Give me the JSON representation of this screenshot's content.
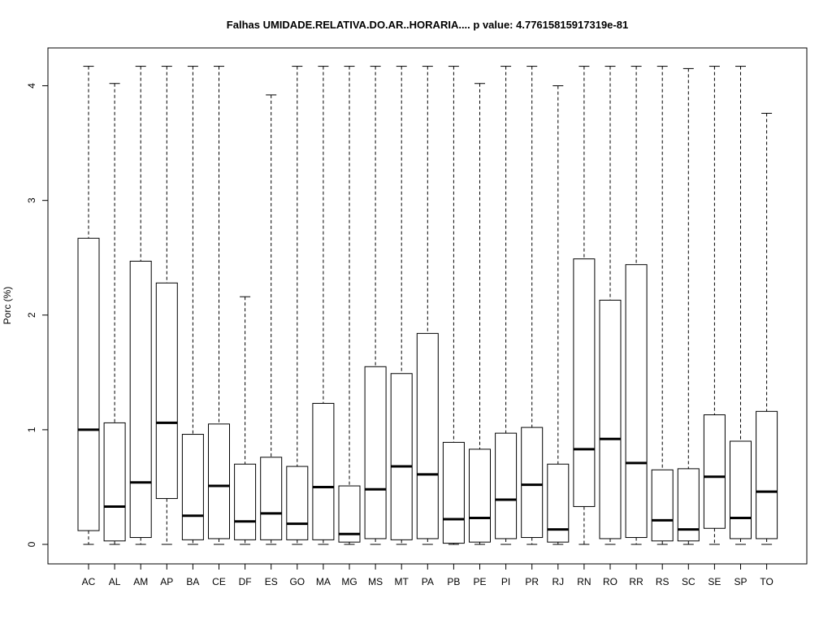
{
  "chart_data": {
    "type": "boxplot",
    "title": "Falhas UMIDADE.RELATIVA.DO.AR..HORARIA.... p value: 4.77615815917319e-81",
    "xlabel": "",
    "ylabel": "Porc (%)",
    "ylim": [
      -0.17,
      4.33
    ],
    "yticks": [
      0,
      1,
      2,
      3,
      4
    ],
    "grid": false,
    "categories": [
      "AC",
      "AL",
      "AM",
      "AP",
      "BA",
      "CE",
      "DF",
      "ES",
      "GO",
      "MA",
      "MG",
      "MS",
      "MT",
      "PA",
      "PB",
      "PE",
      "PI",
      "PR",
      "RJ",
      "RN",
      "RO",
      "RR",
      "RS",
      "SC",
      "SE",
      "SP",
      "TO"
    ],
    "boxes": [
      {
        "min": 0,
        "q1": 0.12,
        "median": 1.0,
        "q3": 2.67,
        "max": 4.17
      },
      {
        "min": 0,
        "q1": 0.03,
        "median": 0.33,
        "q3": 1.06,
        "max": 4.02
      },
      {
        "min": 0,
        "q1": 0.06,
        "median": 0.54,
        "q3": 2.47,
        "max": 4.17
      },
      {
        "min": 0,
        "q1": 0.4,
        "median": 1.06,
        "q3": 2.28,
        "max": 4.17
      },
      {
        "min": 0,
        "q1": 0.04,
        "median": 0.25,
        "q3": 0.96,
        "max": 4.17
      },
      {
        "min": 0,
        "q1": 0.05,
        "median": 0.51,
        "q3": 1.05,
        "max": 4.17
      },
      {
        "min": 0,
        "q1": 0.04,
        "median": 0.2,
        "q3": 0.7,
        "max": 2.16
      },
      {
        "min": 0,
        "q1": 0.04,
        "median": 0.27,
        "q3": 0.76,
        "max": 3.92
      },
      {
        "min": 0,
        "q1": 0.04,
        "median": 0.18,
        "q3": 0.68,
        "max": 4.17
      },
      {
        "min": 0,
        "q1": 0.04,
        "median": 0.5,
        "q3": 1.23,
        "max": 4.17
      },
      {
        "min": 0,
        "q1": 0.02,
        "median": 0.09,
        "q3": 0.51,
        "max": 4.17
      },
      {
        "min": 0,
        "q1": 0.05,
        "median": 0.48,
        "q3": 1.55,
        "max": 4.17
      },
      {
        "min": 0,
        "q1": 0.04,
        "median": 0.68,
        "q3": 1.49,
        "max": 4.17
      },
      {
        "min": 0,
        "q1": 0.05,
        "median": 0.61,
        "q3": 1.84,
        "max": 4.17
      },
      {
        "min": 0,
        "q1": 0.01,
        "median": 0.22,
        "q3": 0.89,
        "max": 4.17
      },
      {
        "min": 0,
        "q1": 0.02,
        "median": 0.23,
        "q3": 0.83,
        "max": 4.02
      },
      {
        "min": 0,
        "q1": 0.05,
        "median": 0.39,
        "q3": 0.97,
        "max": 4.17
      },
      {
        "min": 0,
        "q1": 0.06,
        "median": 0.52,
        "q3": 1.02,
        "max": 4.17
      },
      {
        "min": 0,
        "q1": 0.02,
        "median": 0.13,
        "q3": 0.7,
        "max": 4.0
      },
      {
        "min": 0,
        "q1": 0.33,
        "median": 0.83,
        "q3": 2.49,
        "max": 4.17
      },
      {
        "min": 0,
        "q1": 0.05,
        "median": 0.92,
        "q3": 2.13,
        "max": 4.17
      },
      {
        "min": 0,
        "q1": 0.06,
        "median": 0.71,
        "q3": 2.44,
        "max": 4.17
      },
      {
        "min": 0,
        "q1": 0.03,
        "median": 0.21,
        "q3": 0.65,
        "max": 4.17
      },
      {
        "min": 0,
        "q1": 0.03,
        "median": 0.13,
        "q3": 0.66,
        "max": 4.15
      },
      {
        "min": 0,
        "q1": 0.14,
        "median": 0.59,
        "q3": 1.13,
        "max": 4.17
      },
      {
        "min": 0,
        "q1": 0.05,
        "median": 0.23,
        "q3": 0.9,
        "max": 4.17
      },
      {
        "min": 0,
        "q1": 0.05,
        "median": 0.46,
        "q3": 1.16,
        "max": 3.76
      }
    ]
  }
}
